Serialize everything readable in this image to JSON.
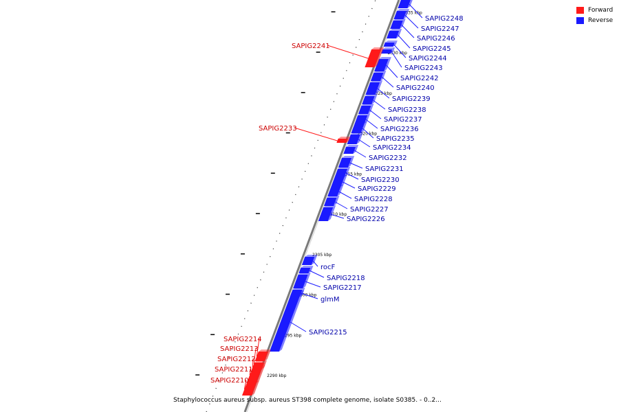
{
  "legend": {
    "forward_label": "Forward",
    "reverse_label": "Reverse",
    "forward_color": "#ff1a1a",
    "reverse_color": "#1a1aff"
  },
  "caption": "Staphylococcus aureus subsp. aureus ST398 complete genome, isolate S0385. - 0..2...",
  "tick_unit": "kbp",
  "ticks": [
    2290,
    2295,
    2300,
    2305,
    2310,
    2315,
    2320,
    2325,
    2330,
    2335
  ],
  "genes": [
    {
      "name": "SAPIG2248",
      "strand": "reverse"
    },
    {
      "name": "SAPIG2247",
      "strand": "reverse"
    },
    {
      "name": "SAPIG2246",
      "strand": "reverse"
    },
    {
      "name": "SAPIG2245",
      "strand": "reverse"
    },
    {
      "name": "SAPIG2244",
      "strand": "reverse"
    },
    {
      "name": "SAPIG2243",
      "strand": "reverse"
    },
    {
      "name": "SAPIG2242",
      "strand": "reverse"
    },
    {
      "name": "SAPIG2241",
      "strand": "forward"
    },
    {
      "name": "SAPIG2240",
      "strand": "reverse"
    },
    {
      "name": "SAPIG2239",
      "strand": "reverse"
    },
    {
      "name": "SAPIG2238",
      "strand": "reverse"
    },
    {
      "name": "SAPIG2237",
      "strand": "reverse"
    },
    {
      "name": "SAPIG2236",
      "strand": "reverse"
    },
    {
      "name": "SAPIG2235",
      "strand": "reverse"
    },
    {
      "name": "SAPIG2234",
      "strand": "reverse"
    },
    {
      "name": "SAPIG2233",
      "strand": "forward"
    },
    {
      "name": "SAPIG2232",
      "strand": "reverse"
    },
    {
      "name": "SAPIG2231",
      "strand": "reverse"
    },
    {
      "name": "SAPIG2230",
      "strand": "reverse"
    },
    {
      "name": "SAPIG2229",
      "strand": "reverse"
    },
    {
      "name": "SAPIG2228",
      "strand": "reverse"
    },
    {
      "name": "SAPIG2227",
      "strand": "reverse"
    },
    {
      "name": "SAPIG2226",
      "strand": "reverse"
    },
    {
      "name": "rocF",
      "strand": "reverse"
    },
    {
      "name": "SAPIG2218",
      "strand": "reverse"
    },
    {
      "name": "SAPIG2217",
      "strand": "reverse"
    },
    {
      "name": "glmM",
      "strand": "reverse"
    },
    {
      "name": "SAPIG2215",
      "strand": "reverse"
    },
    {
      "name": "SAPIG2214",
      "strand": "forward"
    },
    {
      "name": "SAPIG2213",
      "strand": "forward"
    },
    {
      "name": "SAPIG2212",
      "strand": "forward"
    },
    {
      "name": "SAPIG2211",
      "strand": "forward"
    },
    {
      "name": "SAPIG2210",
      "strand": "forward"
    }
  ]
}
